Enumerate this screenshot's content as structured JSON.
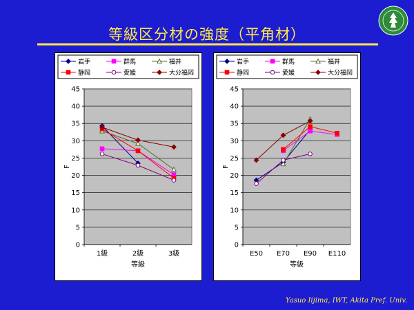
{
  "slide": {
    "title": "等級区分材の強度（平角材）",
    "footer": "Yasuo Iijima, IWT, Akita Pref.  Univ."
  },
  "legend": [
    {
      "name": "岩手",
      "color": "#00008b",
      "marker": "diamond",
      "fill": "filled"
    },
    {
      "name": "群馬",
      "color": "#ff00ff",
      "marker": "square",
      "fill": "filled"
    },
    {
      "name": "福井",
      "color": "#556b2f",
      "marker": "triangle",
      "fill": "open"
    },
    {
      "name": "静岡",
      "color": "#ff0000",
      "marker": "square",
      "fill": "filled"
    },
    {
      "name": "愛媛",
      "color": "#800080",
      "marker": "circle",
      "fill": "open"
    },
    {
      "name": "大分福岡",
      "color": "#8b0000",
      "marker": "diamond",
      "fill": "filled"
    }
  ],
  "chart_data": [
    {
      "type": "line",
      "categories": [
        "1級",
        "2級",
        "3級"
      ],
      "xlabel": "等級",
      "ylabel": "F",
      "ylim": [
        0,
        45
      ],
      "yticks": [
        0,
        5,
        10,
        15,
        20,
        25,
        30,
        35,
        40,
        45
      ],
      "grid": true,
      "legend_position": "top",
      "series": [
        {
          "name": "岩手",
          "values": [
            34.3,
            23.5,
            null
          ]
        },
        {
          "name": "群馬",
          "values": [
            27.7,
            27.1,
            20.2
          ]
        },
        {
          "name": "福井",
          "values": [
            32.8,
            29.2,
            21.7
          ]
        },
        {
          "name": "静岡",
          "values": [
            33.4,
            27.1,
            19.2
          ]
        },
        {
          "name": "愛媛",
          "values": [
            26.2,
            22.9,
            18.6
          ]
        },
        {
          "name": "大分福岡",
          "values": [
            33.9,
            30.2,
            28.2
          ]
        }
      ]
    },
    {
      "type": "line",
      "categories": [
        "E50",
        "E70",
        "E90",
        "E110"
      ],
      "xlabel": "等級",
      "ylabel": "F",
      "ylim": [
        0,
        45
      ],
      "yticks": [
        0,
        5,
        10,
        15,
        20,
        25,
        30,
        35,
        40,
        45
      ],
      "grid": true,
      "legend_position": "top",
      "series": [
        {
          "name": "岩手",
          "values": [
            18.6,
            23.8,
            33.2,
            null
          ]
        },
        {
          "name": "群馬",
          "values": [
            null,
            27.1,
            32.8,
            31.8
          ]
        },
        {
          "name": "福井",
          "values": [
            null,
            23.3,
            36.3,
            null
          ]
        },
        {
          "name": "静岡",
          "values": [
            null,
            27.5,
            34.1,
            32.2
          ]
        },
        {
          "name": "愛媛",
          "values": [
            17.6,
            24.4,
            26.2,
            null
          ]
        },
        {
          "name": "大分福岡",
          "values": [
            24.4,
            31.6,
            35.7,
            null
          ]
        }
      ]
    }
  ]
}
